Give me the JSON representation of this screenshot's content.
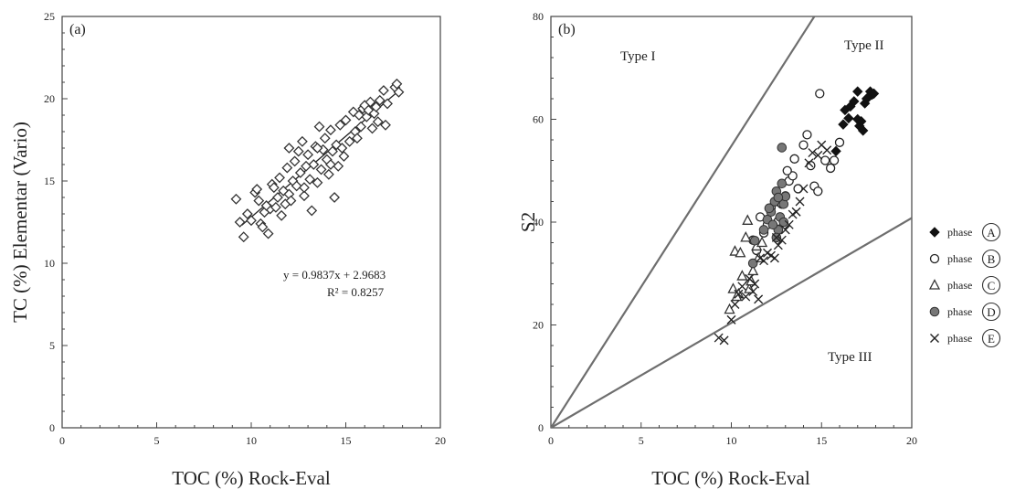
{
  "chart_data": [
    {
      "type": "scatter",
      "panel_label": "(a)",
      "xlabel": "TOC (%) Rock-Eval",
      "ylabel": "TC (%) Elementar (Vario)",
      "xlim": [
        0,
        20
      ],
      "ylim": [
        0,
        25
      ],
      "xticks": [
        "0",
        "5",
        "10",
        "15",
        "20"
      ],
      "yticks": [
        "0",
        "5",
        "10",
        "15",
        "20",
        "25"
      ],
      "grid": false,
      "marker": "open-diamond",
      "trendline": {
        "slope": 0.9837,
        "intercept": 2.9683,
        "x_range": [
          9.5,
          17.8
        ]
      },
      "equation_text": "y = 0.9837x + 2.9683",
      "r2_text": "R² = 0.8257",
      "points": [
        [
          9.2,
          13.9
        ],
        [
          9.4,
          12.5
        ],
        [
          9.6,
          11.6
        ],
        [
          9.8,
          13.0
        ],
        [
          10.0,
          12.6
        ],
        [
          10.2,
          14.3
        ],
        [
          10.3,
          14.5
        ],
        [
          10.4,
          13.8
        ],
        [
          10.5,
          12.4
        ],
        [
          10.6,
          12.2
        ],
        [
          10.7,
          13.1
        ],
        [
          10.9,
          11.8
        ],
        [
          11.0,
          13.3
        ],
        [
          11.1,
          14.8
        ],
        [
          11.2,
          14.6
        ],
        [
          11.3,
          13.4
        ],
        [
          11.4,
          14.0
        ],
        [
          11.6,
          12.9
        ],
        [
          11.7,
          14.4
        ],
        [
          11.8,
          13.6
        ],
        [
          11.9,
          15.8
        ],
        [
          12.0,
          14.2
        ],
        [
          12.1,
          13.8
        ],
        [
          12.2,
          15.0
        ],
        [
          12.3,
          16.2
        ],
        [
          12.4,
          14.7
        ],
        [
          12.5,
          16.8
        ],
        [
          12.6,
          15.5
        ],
        [
          12.7,
          17.4
        ],
        [
          12.8,
          14.1
        ],
        [
          12.9,
          15.9
        ],
        [
          13.0,
          16.6
        ],
        [
          13.1,
          15.1
        ],
        [
          13.2,
          13.2
        ],
        [
          13.3,
          16.0
        ],
        [
          13.4,
          17.1
        ],
        [
          13.5,
          14.9
        ],
        [
          13.6,
          18.3
        ],
        [
          13.7,
          15.7
        ],
        [
          13.8,
          16.9
        ],
        [
          13.9,
          17.6
        ],
        [
          14.0,
          16.3
        ],
        [
          14.1,
          15.4
        ],
        [
          14.2,
          18.1
        ],
        [
          14.3,
          16.8
        ],
        [
          14.4,
          14.0
        ],
        [
          14.5,
          17.2
        ],
        [
          14.6,
          15.9
        ],
        [
          14.7,
          18.4
        ],
        [
          14.8,
          17.0
        ],
        [
          14.9,
          16.5
        ],
        [
          15.0,
          18.7
        ],
        [
          15.2,
          17.4
        ],
        [
          15.4,
          19.2
        ],
        [
          15.5,
          18.0
        ],
        [
          15.6,
          17.6
        ],
        [
          15.7,
          19.0
        ],
        [
          15.8,
          18.3
        ],
        [
          15.9,
          19.4
        ],
        [
          16.0,
          19.6
        ],
        [
          16.1,
          18.9
        ],
        [
          16.2,
          19.3
        ],
        [
          16.3,
          19.8
        ],
        [
          16.4,
          18.2
        ],
        [
          16.5,
          19.1
        ],
        [
          16.6,
          19.5
        ],
        [
          16.7,
          18.6
        ],
        [
          16.8,
          19.9
        ],
        [
          17.0,
          20.5
        ],
        [
          17.1,
          18.4
        ],
        [
          17.2,
          19.7
        ],
        [
          17.6,
          20.7
        ],
        [
          17.7,
          20.9
        ],
        [
          17.8,
          20.4
        ],
        [
          12.0,
          17.0
        ],
        [
          11.5,
          15.2
        ],
        [
          13.5,
          17.0
        ],
        [
          12.8,
          14.6
        ],
        [
          14.2,
          16.0
        ],
        [
          10.8,
          13.5
        ]
      ]
    },
    {
      "type": "scatter",
      "panel_label": "(b)",
      "xlabel": "TOC (%) Rock-Eval",
      "ylabel": "S2",
      "xlim": [
        0,
        20
      ],
      "ylim": [
        0,
        80
      ],
      "xticks": [
        "0",
        "5",
        "10",
        "15",
        "20"
      ],
      "yticks": [
        "0",
        "20",
        "40",
        "60",
        "80"
      ],
      "grid": false,
      "legend_placement": "right",
      "reference_lines": [
        {
          "name": "Type I / Type II boundary",
          "x": [
            0,
            14.6
          ],
          "y": [
            0,
            80
          ]
        },
        {
          "name": "Type II / Type III boundary",
          "x": [
            0,
            20
          ],
          "y": [
            0,
            40.8
          ]
        }
      ],
      "region_labels": [
        "Type I",
        "Type II",
        "Type III"
      ],
      "series": [
        {
          "name": "phase",
          "tag": "A",
          "marker": "filled-diamond",
          "points": [
            [
              15.8,
              53.8
            ],
            [
              16.2,
              59.0
            ],
            [
              16.3,
              61.8
            ],
            [
              16.5,
              60.2
            ],
            [
              16.6,
              62.5
            ],
            [
              16.8,
              63.5
            ],
            [
              17.0,
              60.0
            ],
            [
              17.0,
              65.4
            ],
            [
              17.1,
              58.7
            ],
            [
              17.2,
              59.6
            ],
            [
              17.3,
              57.8
            ],
            [
              17.4,
              63.1
            ],
            [
              17.6,
              64.3
            ],
            [
              17.7,
              65.4
            ],
            [
              17.8,
              64.8
            ],
            [
              17.9,
              65.0
            ],
            [
              17.5,
              64.0
            ]
          ]
        },
        {
          "name": "phase",
          "tag": "B",
          "marker": "open-circle",
          "points": [
            [
              11.2,
              36.5
            ],
            [
              11.4,
              34.5
            ],
            [
              11.6,
              41.0
            ],
            [
              11.8,
              37.9
            ],
            [
              12.0,
              39.5
            ],
            [
              12.2,
              42.8
            ],
            [
              12.5,
              44.0
            ],
            [
              12.8,
              43.5
            ],
            [
              13.0,
              45.1
            ],
            [
              13.2,
              48.0
            ],
            [
              13.4,
              49.0
            ],
            [
              13.5,
              52.3
            ],
            [
              13.7,
              46.5
            ],
            [
              14.0,
              55.0
            ],
            [
              14.2,
              57.0
            ],
            [
              14.4,
              51.0
            ],
            [
              14.6,
              47.0
            ],
            [
              14.8,
              46.0
            ],
            [
              14.9,
              65.0
            ],
            [
              15.2,
              52.0
            ],
            [
              15.5,
              50.5
            ],
            [
              15.7,
              52.0
            ],
            [
              16.0,
              55.5
            ],
            [
              13.1,
              50.0
            ],
            [
              12.6,
              40.2
            ]
          ]
        },
        {
          "name": "phase",
          "tag": "C",
          "marker": "open-triangle",
          "points": [
            [
              9.9,
              23.0
            ],
            [
              10.1,
              27.0
            ],
            [
              10.2,
              34.3
            ],
            [
              10.4,
              26.0
            ],
            [
              10.5,
              34.0
            ],
            [
              10.6,
              29.5
            ],
            [
              10.8,
              37.0
            ],
            [
              10.9,
              40.3
            ],
            [
              11.0,
              27.0
            ],
            [
              11.2,
              30.5
            ],
            [
              11.4,
              35.3
            ],
            [
              11.5,
              33.0
            ],
            [
              11.7,
              36.0
            ],
            [
              10.3,
              25.5
            ],
            [
              11.1,
              28.5
            ]
          ]
        },
        {
          "name": "phase",
          "tag": "D",
          "marker": "filled-circle",
          "points": [
            [
              11.2,
              32.0
            ],
            [
              11.3,
              36.4
            ],
            [
              11.8,
              38.5
            ],
            [
              12.0,
              40.5
            ],
            [
              12.2,
              42.0
            ],
            [
              12.4,
              44.0
            ],
            [
              12.5,
              46.0
            ],
            [
              12.6,
              38.5
            ],
            [
              12.7,
              41.0
            ],
            [
              12.8,
              47.5
            ],
            [
              12.9,
              43.5
            ],
            [
              13.0,
              45.0
            ],
            [
              12.8,
              54.5
            ],
            [
              12.5,
              37.0
            ],
            [
              12.3,
              39.5
            ],
            [
              12.6,
              44.8
            ],
            [
              12.1,
              42.7
            ],
            [
              12.9,
              40.0
            ]
          ]
        },
        {
          "name": "phase",
          "tag": "E",
          "marker": "x-cross",
          "points": [
            [
              9.3,
              17.5
            ],
            [
              9.6,
              17.0
            ],
            [
              10.0,
              21.0
            ],
            [
              10.2,
              24.0
            ],
            [
              10.4,
              26.0
            ],
            [
              10.6,
              27.5
            ],
            [
              10.8,
              25.5
            ],
            [
              11.0,
              29.0
            ],
            [
              11.2,
              26.5
            ],
            [
              11.3,
              28.0
            ],
            [
              11.5,
              25.0
            ],
            [
              11.6,
              33.0
            ],
            [
              11.8,
              32.5
            ],
            [
              12.0,
              34.0
            ],
            [
              12.2,
              33.5
            ],
            [
              12.4,
              33.0
            ],
            [
              12.5,
              37.0
            ],
            [
              12.6,
              35.5
            ],
            [
              12.8,
              36.5
            ],
            [
              13.0,
              38.5
            ],
            [
              13.2,
              39.5
            ],
            [
              13.4,
              41.5
            ],
            [
              13.6,
              42.0
            ],
            [
              13.8,
              44.0
            ],
            [
              14.0,
              46.5
            ],
            [
              14.3,
              51.5
            ],
            [
              14.5,
              53.5
            ],
            [
              14.8,
              53.0
            ],
            [
              15.0,
              55.0
            ],
            [
              15.3,
              54.0
            ]
          ]
        }
      ]
    }
  ]
}
